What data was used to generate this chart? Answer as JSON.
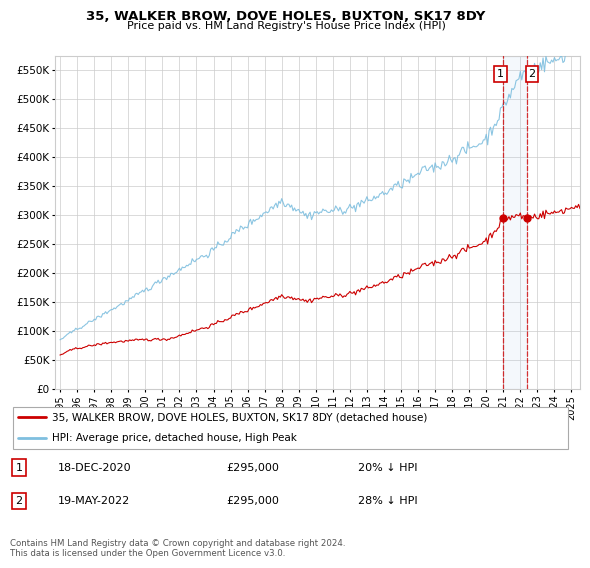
{
  "title": "35, WALKER BROW, DOVE HOLES, BUXTON, SK17 8DY",
  "subtitle": "Price paid vs. HM Land Registry's House Price Index (HPI)",
  "hpi_color": "#7fbfdf",
  "price_color": "#cc0000",
  "ylim": [
    0,
    575000
  ],
  "xlim": [
    1994.7,
    2025.5
  ],
  "yticks": [
    0,
    50000,
    100000,
    150000,
    200000,
    250000,
    300000,
    350000,
    400000,
    450000,
    500000,
    550000
  ],
  "ytick_labels": [
    "£0",
    "£50K",
    "£100K",
    "£150K",
    "£200K",
    "£250K",
    "£300K",
    "£350K",
    "£400K",
    "£450K",
    "£500K",
    "£550K"
  ],
  "xtick_years": [
    1995,
    1996,
    1997,
    1998,
    1999,
    2000,
    2001,
    2002,
    2003,
    2004,
    2005,
    2006,
    2007,
    2008,
    2009,
    2010,
    2011,
    2012,
    2013,
    2014,
    2015,
    2016,
    2017,
    2018,
    2019,
    2020,
    2021,
    2022,
    2023,
    2024,
    2025
  ],
  "legend_line1": "35, WALKER BROW, DOVE HOLES, BUXTON, SK17 8DY (detached house)",
  "legend_line2": "HPI: Average price, detached house, High Peak",
  "note1_num": "1",
  "note1_date": "18-DEC-2020",
  "note1_price": "£295,000",
  "note1_hpi": "20% ↓ HPI",
  "note2_num": "2",
  "note2_date": "19-MAY-2022",
  "note2_price": "£295,000",
  "note2_hpi": "28% ↓ HPI",
  "footer": "Contains HM Land Registry data © Crown copyright and database right 2024.\nThis data is licensed under the Open Government Licence v3.0.",
  "bg_color": "#ffffff",
  "grid_color": "#cccccc",
  "vline1_x": 2020.97,
  "vline2_x": 2022.38,
  "marker1_x": 2020.97,
  "marker1_y": 295000,
  "marker2_x": 2022.38,
  "marker2_y": 295000,
  "purchase_dates": [
    1995.7,
    2001.3,
    2020.97,
    2022.38
  ],
  "purchase_prices": [
    68000,
    85000,
    295000,
    295000
  ]
}
